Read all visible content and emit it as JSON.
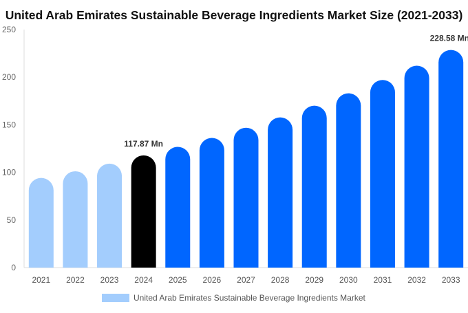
{
  "chart_data": {
    "type": "bar",
    "title": "United Arab Emirates Sustainable Beverage Ingredients Market Size (2021-2033)",
    "categories": [
      "2021",
      "2022",
      "2023",
      "2024",
      "2025",
      "2026",
      "2027",
      "2028",
      "2029",
      "2030",
      "2031",
      "2032",
      "2033"
    ],
    "series": [
      {
        "name": "United Arab Emirates Sustainable Beverage Ingredients Market",
        "values": [
          94.2,
          101.2,
          109.2,
          117.87,
          126.8,
          136.2,
          146.9,
          157.8,
          170.1,
          183.1,
          197.1,
          212.1,
          228.58
        ]
      }
    ],
    "annotations": [
      {
        "category": "2024",
        "label": "117.87 Mn"
      },
      {
        "category": "2033",
        "label": "228.58 Mn"
      }
    ],
    "yticks": [
      0,
      50,
      100,
      150,
      200,
      250
    ],
    "ylim": [
      0,
      250
    ],
    "grid": false,
    "legend_position": "bottom",
    "colors": {
      "historical": "#a3cdfd",
      "base_year": "#000000",
      "forecast": "#0066ff"
    }
  }
}
